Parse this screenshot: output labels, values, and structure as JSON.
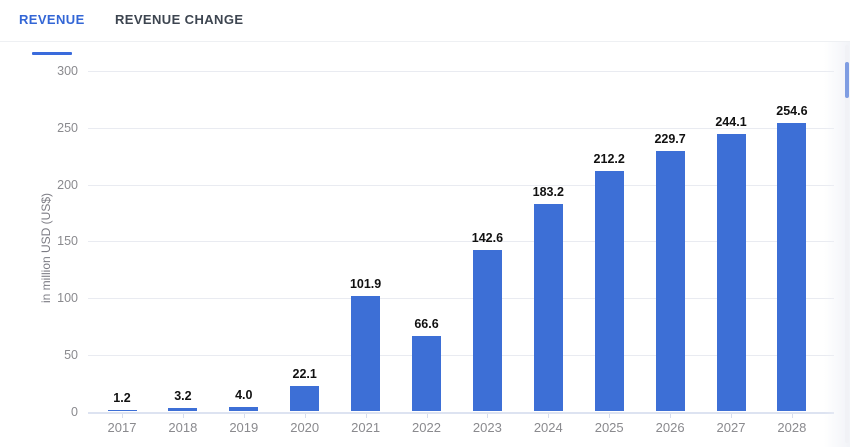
{
  "tabs": [
    {
      "label": "REVENUE",
      "active": true
    },
    {
      "label": "REVENUE CHANGE",
      "active": false
    }
  ],
  "chart_data": {
    "type": "bar",
    "categories": [
      "2017",
      "2018",
      "2019",
      "2020",
      "2021",
      "2022",
      "2023",
      "2024",
      "2025",
      "2026",
      "2027",
      "2028"
    ],
    "values": [
      1.2,
      3.2,
      4.0,
      22.1,
      101.9,
      66.6,
      142.6,
      183.2,
      212.2,
      229.7,
      244.1,
      254.6
    ],
    "value_labels": [
      "1.2",
      "3.2",
      "4.0",
      "22.1",
      "101.9",
      "66.6",
      "142.6",
      "183.2",
      "212.2",
      "229.7",
      "244.1",
      "254.6"
    ],
    "title": "",
    "xlabel": "",
    "ylabel": "in million USD (US$)",
    "yticks": [
      0,
      50,
      100,
      150,
      200,
      250,
      300
    ],
    "ylim": [
      0,
      300
    ],
    "grid": true,
    "legend": false,
    "bar_color": "#3d6fd6",
    "accent_color": "#3366d6"
  }
}
